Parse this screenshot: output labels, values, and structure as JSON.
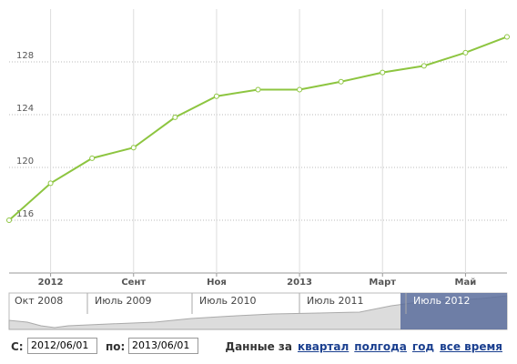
{
  "chart_data": {
    "type": "line",
    "categories": [
      null,
      "2012",
      null,
      "Сент",
      null,
      "Ноя",
      null,
      "2013",
      null,
      "Март",
      null,
      "Май",
      null
    ],
    "values": [
      116,
      118.8,
      120.7,
      121.5,
      123.8,
      125.4,
      125.9,
      125.9,
      126.5,
      127.2,
      127.7,
      128.7,
      129.9
    ],
    "color": "#8dc540",
    "ylim": [
      112,
      132
    ],
    "yticks": [
      116,
      120,
      124,
      128
    ],
    "grid": true
  },
  "navigator": {
    "labels": [
      "Окт 2008",
      "Июль 2009",
      "Июль 2010",
      "Июль 2011",
      "Июль 2012"
    ]
  },
  "controls": {
    "from_label": "С:",
    "from_value": "2012/06/01",
    "to_label": "по:",
    "to_value": "2013/06/01",
    "period_label": "Данные за",
    "periods": [
      "квартал",
      "полгода",
      "год",
      "все время"
    ]
  }
}
